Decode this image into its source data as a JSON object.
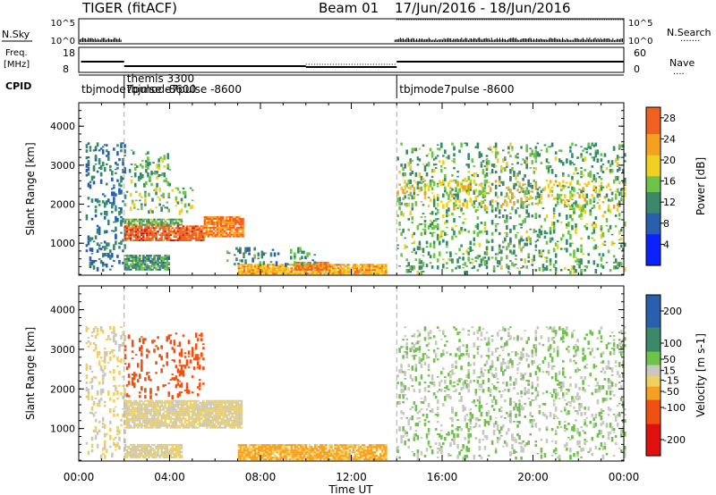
{
  "header": {
    "radar": "TIGER (fitACF)",
    "beam": "Beam 01",
    "dates": "17/Jun/2016 - 18/Jun/2016"
  },
  "top_strips": {
    "nsky_label": "N.Sky",
    "nsearch_label": "N.Search",
    "nsearch_dots": "·······",
    "freq_label_1": "Freq.",
    "freq_label_2": "[MHz]",
    "nave_label": "Nave",
    "nave_dots": "····",
    "cpid_label": "CPID",
    "n_left_ticks": [
      "10^5",
      "10^0"
    ],
    "n_right_ticks": [
      "10^5",
      "10^0"
    ],
    "freq_ticks": [
      "18",
      "8"
    ],
    "nave_ticks": [
      "60",
      "0"
    ],
    "cpid_segments": [
      {
        "label": "tbjmode7pulse -8600",
        "start_hour": 0,
        "end_hour": 2
      },
      {
        "label": "themis 3300",
        "start_hour": 2,
        "end_hour": 3.5
      },
      {
        "label": "tbjmode7pulse -8600",
        "start_hour": 2,
        "end_hour": 14
      },
      {
        "label": "tbjmode7pulse -8600",
        "start_hour": 14,
        "end_hour": 24
      }
    ]
  },
  "x_axis": {
    "label": "Time UT",
    "ticks": [
      "00:00",
      "04:00",
      "08:00",
      "12:00",
      "16:00",
      "20:00",
      "00:00"
    ]
  },
  "chart_data": [
    {
      "type": "heatmap",
      "quantity": "Power",
      "ylabel": "Slant Range [km]",
      "xlabel": "Time UT",
      "xlim": [
        0,
        24
      ],
      "ylim": [
        180,
        4600
      ],
      "y_ticks": [
        1000,
        2000,
        3000,
        4000
      ],
      "colorbar": {
        "label": "Power [dB]",
        "ticks": [
          4,
          8,
          12,
          16,
          20,
          24,
          28
        ],
        "range": [
          0,
          30
        ]
      },
      "regions": [
        {
          "t": [
            0.3,
            2.0
          ],
          "r": [
            300,
            3550
          ],
          "value": 10,
          "note": "sparse"
        },
        {
          "t": [
            2.0,
            5.5
          ],
          "r": [
            1050,
            1450
          ],
          "value": 27
        },
        {
          "t": [
            5.5,
            7.2
          ],
          "r": [
            1150,
            1650
          ],
          "value": 25
        },
        {
          "t": [
            2.0,
            4.5
          ],
          "r": [
            1450,
            1600
          ],
          "value": 14
        },
        {
          "t": [
            2.0,
            5.0
          ],
          "r": [
            1800,
            2400
          ],
          "value": 16,
          "note": "sparse"
        },
        {
          "t": [
            2.2,
            4.0
          ],
          "r": [
            2500,
            3400
          ],
          "value": 14,
          "note": "sparse"
        },
        {
          "t": [
            2.0,
            4.0
          ],
          "r": [
            300,
            700
          ],
          "value": 13
        },
        {
          "t": [
            7.0,
            13.5
          ],
          "r": [
            200,
            450
          ],
          "value": 22
        },
        {
          "t": [
            9.5,
            11.0
          ],
          "r": [
            300,
            500
          ],
          "value": 26
        },
        {
          "t": [
            6.5,
            10.5
          ],
          "r": [
            450,
            900
          ],
          "value": 12,
          "note": "sparse"
        },
        {
          "t": [
            14.0,
            24.0
          ],
          "r": [
            250,
            3550
          ],
          "value": 14,
          "note": "sparse"
        },
        {
          "t": [
            14.0,
            24.0
          ],
          "r": [
            1900,
            2600
          ],
          "value": 19,
          "note": "sparse"
        }
      ]
    },
    {
      "type": "heatmap",
      "quantity": "Velocity",
      "ylabel": "Slant Range [km]",
      "xlabel": "Time UT",
      "xlim": [
        0,
        24
      ],
      "ylim": [
        180,
        4600
      ],
      "y_ticks": [
        1000,
        2000,
        3000,
        4000
      ],
      "colorbar": {
        "label": "Velocity [m s-1]",
        "ticks": [
          200,
          100,
          50,
          15,
          -15,
          -50,
          -100,
          -200
        ],
        "range": [
          -250,
          250
        ]
      },
      "regions": [
        {
          "t": [
            0.3,
            2.0
          ],
          "r": [
            300,
            3550
          ],
          "value": 0,
          "note": "sparse"
        },
        {
          "t": [
            2.0,
            7.2
          ],
          "r": [
            1000,
            1700
          ],
          "value": 0
        },
        {
          "t": [
            2.0,
            5.5
          ],
          "r": [
            1800,
            3400
          ],
          "value": -120,
          "note": "sparse"
        },
        {
          "t": [
            2.0,
            4.5
          ],
          "r": [
            250,
            600
          ],
          "value": 0
        },
        {
          "t": [
            7.0,
            13.5
          ],
          "r": [
            200,
            600
          ],
          "value": -40
        },
        {
          "t": [
            14.0,
            24.0
          ],
          "r": [
            250,
            3550
          ],
          "value": 30,
          "note": "sparse"
        }
      ]
    }
  ]
}
